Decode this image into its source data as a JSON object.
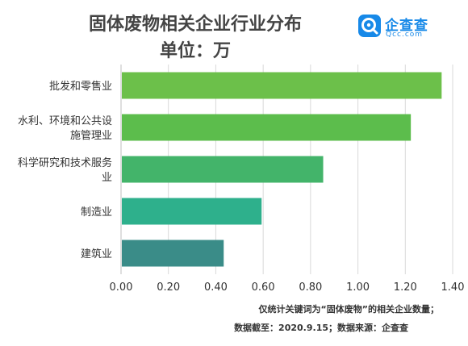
{
  "header": {
    "title_line1": "固体废物相关企业行业分布",
    "title_line2": "单位：万"
  },
  "logo": {
    "name_cn": "企查查",
    "name_en": "Qcc.com"
  },
  "chart_data": {
    "type": "bar",
    "orientation": "horizontal",
    "categories": [
      [
        "批发和零售业"
      ],
      [
        "水利、环境和公共设",
        "施管理业"
      ],
      [
        "科学研究和技术服务",
        "业"
      ],
      [
        "制造业"
      ],
      [
        "建筑业"
      ]
    ],
    "values": [
      1.35,
      1.22,
      0.85,
      0.59,
      0.43
    ],
    "bar_colors": [
      "#6cc04a",
      "#5cbd4c",
      "#43b46a",
      "#2eb08c",
      "#3a8c88"
    ],
    "xlim": [
      0,
      1.4
    ],
    "x_ticks": [
      "0.00",
      "0.20",
      "0.40",
      "0.60",
      "0.80",
      "1.00",
      "1.20",
      "1.40"
    ],
    "grid": true
  },
  "footer": {
    "note1": "仅统计关键词为“固体废物”的相关企业数量；",
    "note2": "数据截至：2020.9.15；数据来源：企查查"
  }
}
